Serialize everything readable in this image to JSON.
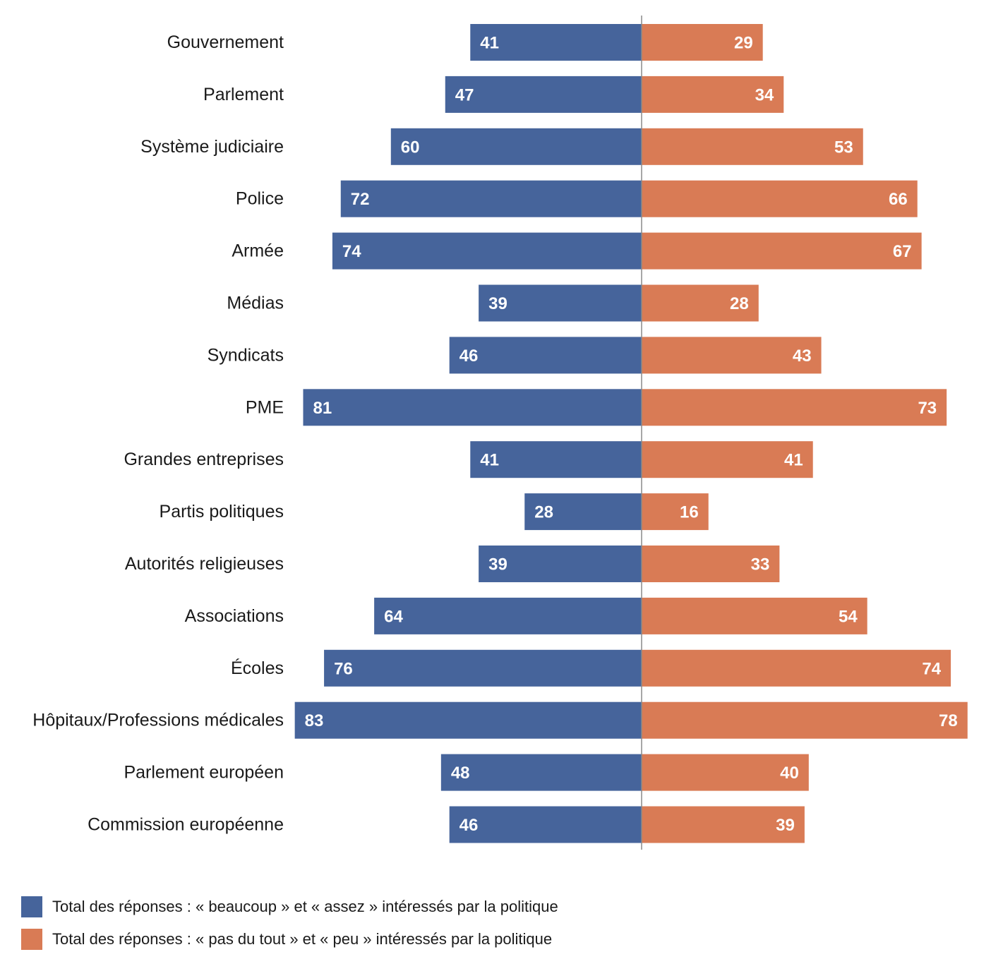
{
  "chart_data": {
    "type": "bar",
    "orientation": "horizontal-diverging",
    "categories": [
      "Gouvernement",
      "Parlement",
      "Système judiciaire",
      "Police",
      "Armée",
      "Médias",
      "Syndicats",
      "PME",
      "Grandes entreprises",
      "Partis politiques",
      "Autorités religieuses",
      "Associations",
      "Écoles",
      "Hôpitaux/Professions médicales",
      "Parlement européen",
      "Commission européenne"
    ],
    "series": [
      {
        "name": "Total des réponses : « beaucoup » et « assez » intéressés par la politique",
        "color": "#46649b",
        "side": "left",
        "values": [
          41,
          47,
          60,
          72,
          74,
          39,
          46,
          81,
          41,
          28,
          39,
          64,
          76,
          83,
          48,
          46
        ]
      },
      {
        "name": "Total des réponses : « pas du tout » et « peu » intéressés par la politique",
        "color": "#d97b55",
        "side": "right",
        "values": [
          29,
          34,
          53,
          66,
          67,
          28,
          43,
          73,
          41,
          16,
          33,
          54,
          74,
          78,
          40,
          39
        ]
      }
    ],
    "title": "",
    "xlabel": "",
    "ylabel": "",
    "grid": false,
    "legend_position": "bottom-left"
  }
}
